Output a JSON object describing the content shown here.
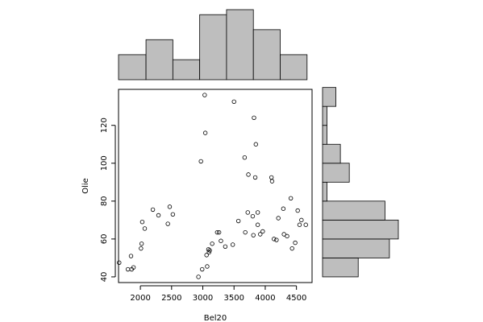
{
  "chart_data": {
    "type": "scatter",
    "title": "",
    "xlabel": "Bel20",
    "ylabel": "Olie",
    "xlim": [
      1650,
      4750
    ],
    "ylim": [
      37,
      139
    ],
    "x_ticks": [
      2000,
      2500,
      3000,
      3500,
      4000,
      4500
    ],
    "y_ticks": [
      40,
      60,
      80,
      100,
      120
    ],
    "grid": false,
    "points": [
      [
        1660,
        47.5
      ],
      [
        1800,
        44
      ],
      [
        1850,
        51
      ],
      [
        1860,
        44
      ],
      [
        1890,
        45
      ],
      [
        2010,
        55
      ],
      [
        2020,
        57.5
      ],
      [
        2030,
        69
      ],
      [
        2070,
        65.5
      ],
      [
        2200,
        75.5
      ],
      [
        2290,
        72.5
      ],
      [
        2440,
        68
      ],
      [
        2470,
        77
      ],
      [
        2520,
        73
      ],
      [
        2930,
        40
      ],
      [
        2970,
        101
      ],
      [
        2990,
        44
      ],
      [
        3030,
        136
      ],
      [
        3040,
        116
      ],
      [
        3060,
        51.5
      ],
      [
        3070,
        45.5
      ],
      [
        3090,
        54.5
      ],
      [
        3100,
        53
      ],
      [
        3110,
        54
      ],
      [
        3150,
        57.5
      ],
      [
        3230,
        63.5
      ],
      [
        3260,
        63.5
      ],
      [
        3290,
        59
      ],
      [
        3360,
        56
      ],
      [
        3480,
        57
      ],
      [
        3500,
        132.5
      ],
      [
        3570,
        69.5
      ],
      [
        3670,
        103
      ],
      [
        3680,
        63.5
      ],
      [
        3720,
        74
      ],
      [
        3730,
        94
      ],
      [
        3800,
        72
      ],
      [
        3810,
        62
      ],
      [
        3820,
        124
      ],
      [
        3840,
        92.5
      ],
      [
        3850,
        110
      ],
      [
        3880,
        74
      ],
      [
        3880,
        67.5
      ],
      [
        3920,
        62.5
      ],
      [
        3960,
        64
      ],
      [
        4100,
        92.5
      ],
      [
        4110,
        90.5
      ],
      [
        4140,
        60
      ],
      [
        4180,
        59.5
      ],
      [
        4210,
        71
      ],
      [
        4290,
        76
      ],
      [
        4300,
        62.5
      ],
      [
        4350,
        61.5
      ],
      [
        4410,
        81.5
      ],
      [
        4430,
        55
      ],
      [
        4480,
        58
      ],
      [
        4520,
        75
      ],
      [
        4550,
        67.5
      ],
      [
        4580,
        70
      ],
      [
        4650,
        67.5
      ]
    ],
    "x_histogram": {
      "bin_edges": [
        1650,
        2090,
        2520,
        2950,
        3380,
        3810,
        4240,
        4670
      ],
      "counts": [
        5,
        8,
        4,
        13,
        14,
        10,
        5
      ]
    },
    "y_histogram": {
      "bin_edges": [
        40,
        50,
        60,
        70,
        80,
        90,
        100,
        110,
        120,
        130,
        140
      ],
      "counts": [
        8,
        15,
        17,
        14,
        1,
        6,
        4,
        1,
        1,
        3
      ]
    }
  }
}
